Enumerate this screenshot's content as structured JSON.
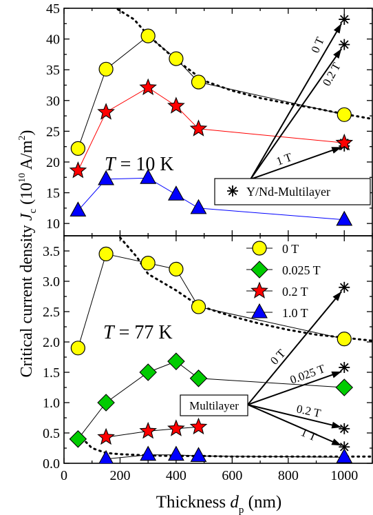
{
  "figure": {
    "ylabel_main": "Critical current density ",
    "ylabel_sym": "J",
    "ylabel_sub": "c",
    "ylabel_unit_open": " (10",
    "ylabel_exp1": "10",
    "ylabel_unit_mid": " A/m",
    "ylabel_exp2": "2",
    "ylabel_unit_close": ")",
    "xlabel_main": "Thickness ",
    "xlabel_sym": "d",
    "xlabel_sub": "p",
    "xlabel_unit": " (nm)"
  },
  "chart_data": [
    {
      "type": "scatter",
      "panel": "top",
      "annotation_T_sym": "T",
      "annotation_T_val": " = 10 K",
      "xlim": [
        0,
        1100
      ],
      "ylim": [
        8,
        45
      ],
      "xticks": [
        0,
        200,
        400,
        600,
        800,
        1000
      ],
      "yticks": [
        10,
        15,
        20,
        25,
        30,
        35,
        40,
        45
      ],
      "series": [
        {
          "key": "0T",
          "marker": "circle",
          "color": "#ffff00",
          "line": "#000000",
          "x": [
            50,
            150,
            300,
            400,
            480,
            1000
          ],
          "y": [
            22.2,
            35.1,
            40.5,
            36.8,
            33.0,
            27.7
          ]
        },
        {
          "key": "02T",
          "marker": "star",
          "color": "#ff0000",
          "line": "#ff0000",
          "x": [
            50,
            150,
            300,
            400,
            480,
            1000
          ],
          "y": [
            18.6,
            28.1,
            32.1,
            29.1,
            25.4,
            23.1
          ]
        },
        {
          "key": "1T",
          "marker": "triangle",
          "color": "#0000ff",
          "line": "#0000ff",
          "x": [
            50,
            150,
            300,
            400,
            480,
            1000
          ],
          "y": [
            12.1,
            17.2,
            17.4,
            14.7,
            12.5,
            10.6
          ]
        }
      ],
      "multilayer": {
        "label": "Y/Nd-Multilayer",
        "x": 1000,
        "points": [
          {
            "label": "0 T",
            "y": 43.2
          },
          {
            "label": "0.2 T",
            "y": 39.1
          },
          {
            "label": "1 T",
            "y": 23.1
          },
          {
            "label": "",
            "y": 22.6
          }
        ]
      },
      "dotted_fit": {
        "x": [
          175,
          250,
          300,
          400,
          500,
          600,
          700,
          800,
          900,
          1000,
          1100
        ],
        "y": [
          45.3,
          43.2,
          40.6,
          36.6,
          33.2,
          31.6,
          30.4,
          29.5,
          28.7,
          27.8,
          27.0
        ]
      }
    },
    {
      "type": "scatter",
      "panel": "bottom",
      "annotation_T_sym": "T",
      "annotation_T_val": " = 77 K",
      "xlim": [
        0,
        1100
      ],
      "ylim": [
        0,
        3.75
      ],
      "xticks": [
        0,
        200,
        400,
        600,
        800,
        1000
      ],
      "xtick_labels": [
        "0",
        "200",
        "400",
        "600",
        "800",
        "1000"
      ],
      "yticks": [
        0.0,
        0.5,
        1.0,
        1.5,
        2.0,
        2.5,
        3.0,
        3.5
      ],
      "ytick_labels": [
        "0.0",
        "0.5",
        "1.0",
        "1.5",
        "2.0",
        "2.5",
        "3.0",
        "3.5"
      ],
      "legend": [
        {
          "label": "0 T",
          "marker": "circle",
          "color": "#ffff00"
        },
        {
          "label": "0.025 T",
          "marker": "diamond",
          "color": "#00cc00"
        },
        {
          "label": "0.2 T",
          "marker": "star",
          "color": "#ff0000"
        },
        {
          "label": "1.0 T",
          "marker": "triangle",
          "color": "#0000ff"
        }
      ],
      "series": [
        {
          "key": "0T",
          "marker": "circle",
          "color": "#ffff00",
          "x": [
            50,
            150,
            300,
            400,
            480,
            1000
          ],
          "y": [
            1.9,
            3.45,
            3.3,
            3.2,
            2.58,
            2.05
          ]
        },
        {
          "key": "0025T",
          "marker": "diamond",
          "color": "#00cc00",
          "x": [
            50,
            150,
            300,
            400,
            480,
            1000
          ],
          "y": [
            0.4,
            1.0,
            1.5,
            1.68,
            1.4,
            1.25
          ]
        },
        {
          "key": "02T",
          "marker": "star",
          "color": "#ff0000",
          "x": [
            150,
            300,
            400,
            480
          ],
          "y": [
            0.43,
            0.53,
            0.57,
            0.6
          ]
        },
        {
          "key": "1T",
          "marker": "triangle",
          "color": "#0000ff",
          "x": [
            150,
            300,
            400,
            480,
            1000
          ],
          "y": [
            0.07,
            0.14,
            0.14,
            0.12,
            0.1
          ]
        }
      ],
      "multilayer": {
        "label": "Multilayer",
        "x": 1000,
        "points": [
          {
            "label": "0 T",
            "y": 2.9
          },
          {
            "label": "0.025 T",
            "y": 1.58
          },
          {
            "label": "0.2 T",
            "y": 0.57
          },
          {
            "label": "1 T",
            "y": 0.27
          }
        ]
      },
      "dotted_fit_upper": {
        "x": [
          200,
          260,
          300,
          400,
          480,
          600,
          700,
          800,
          900,
          1000,
          1100
        ],
        "y": [
          3.72,
          3.4,
          3.12,
          2.85,
          2.6,
          2.42,
          2.3,
          2.2,
          2.12,
          2.07,
          2.02
        ]
      },
      "dotted_fit_lower": {
        "x": [
          50,
          100,
          150,
          200,
          300,
          400,
          500,
          600,
          800,
          1000,
          1100
        ],
        "y": [
          0.48,
          0.25,
          0.17,
          0.15,
          0.13,
          0.12,
          0.12,
          0.11,
          0.11,
          0.11,
          0.11
        ]
      }
    }
  ]
}
